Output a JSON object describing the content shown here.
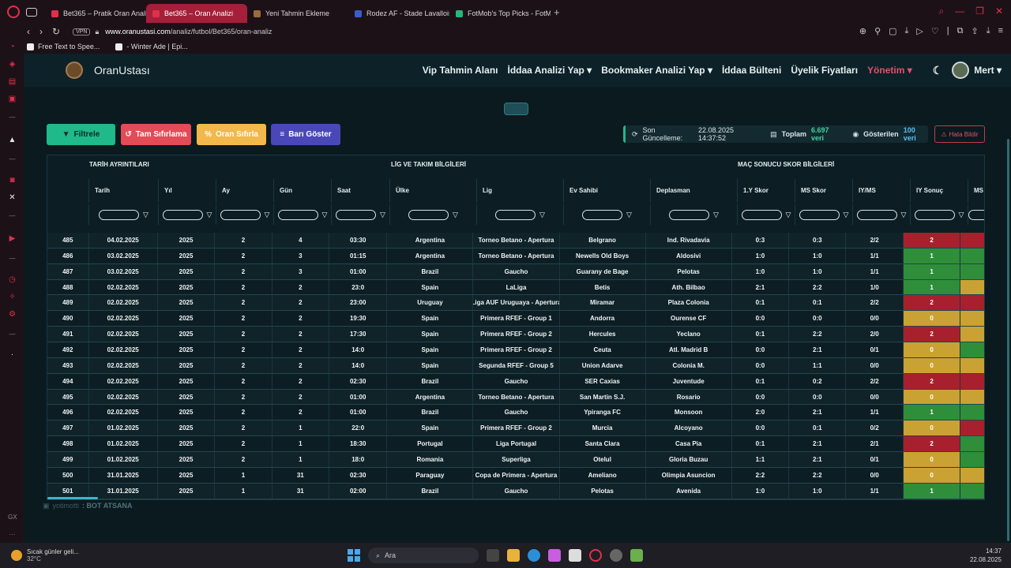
{
  "browser": {
    "tabs": [
      {
        "label": "Bet365 – Pratik Oran Analiz",
        "color": "#e0304a",
        "active": false
      },
      {
        "label": "Bet365 – Oran Analizi",
        "color": "#e0304a",
        "active": true
      },
      {
        "label": "Yeni Tahmin Ekleme",
        "color": "#9a6b3c",
        "active": false
      },
      {
        "label": "Rodez AF - Stade Lavallois",
        "color": "#3a5ec9",
        "active": false
      },
      {
        "label": "FotMob's Top Picks - FotMob",
        "color": "#27b67a",
        "active": false
      }
    ],
    "vpn": "VPN",
    "url_host": "www.oranustasi.com",
    "url_path": "/analiz/futbol/Bet365/oran-analiz",
    "bookmarks": [
      "Free Text to Spee...",
      "- Winter Ade | Epi..."
    ]
  },
  "app": {
    "brand": "OranUstası",
    "menu": [
      "Vip Tahmin Alanı",
      "İddaa Analizi Yap ▾",
      "Bookmaker Analizi Yap ▾",
      "İddaa Bülteni",
      "Üyelik Fiyatları"
    ],
    "management": "Yönetim ▾",
    "user": "Mert ▾"
  },
  "toolbar": {
    "filter": "Filtrele",
    "reset_all": "Tam Sıfırlama",
    "reset_odds": "Oran Sıfırla",
    "show_bar": "Barı Göster"
  },
  "status": {
    "last_update_label": "Son Güncelleme:",
    "last_update": "22.08.2025 14:37:52",
    "total_label": "Toplam",
    "total": "6.697 veri",
    "shown_label": "Gösterilen",
    "shown": "100 veri",
    "error_button": "Hata Bildir"
  },
  "table": {
    "groups": [
      "TARİH AYRINTILARI",
      "LİG VE TAKIM BİLGİLERİ",
      "MAÇ SONUCU SKOR BİLGİLERİ"
    ],
    "columns": [
      "",
      "Tarih",
      "Yıl",
      "Ay",
      "Gün",
      "Saat",
      "Ülke",
      "Lig",
      "Ev Sahibi",
      "Deplasman",
      "1.Y Skor",
      "MS Skor",
      "IY/MS",
      "IY Sonuç",
      "MS So"
    ],
    "rows": [
      {
        "id": "485",
        "date": "04.02.2025",
        "year": "2025",
        "month": "2",
        "day": "4",
        "time": "03:30",
        "country": "Argentina",
        "league": "Torneo Betano - Apertura",
        "home": "Belgrano",
        "away": "Ind. Rivadavia",
        "ht": "0:3",
        "ft": "0:3",
        "htft": "2/2",
        "iy": "2",
        "iy_color": "#a8202e",
        "ms_color": "#a8202e"
      },
      {
        "id": "486",
        "date": "03.02.2025",
        "year": "2025",
        "month": "2",
        "day": "3",
        "time": "01:15",
        "country": "Argentina",
        "league": "Torneo Betano - Apertura",
        "home": "Newells Old Boys",
        "away": "Aldosivi",
        "ht": "1:0",
        "ft": "1:0",
        "htft": "1/1",
        "iy": "1",
        "iy_color": "#2e8e3a",
        "ms_color": "#2e8e3a"
      },
      {
        "id": "487",
        "date": "03.02.2025",
        "year": "2025",
        "month": "2",
        "day": "3",
        "time": "01:00",
        "country": "Brazil",
        "league": "Gaucho",
        "home": "Guarany de Bage",
        "away": "Pelotas",
        "ht": "1:0",
        "ft": "1:0",
        "htft": "1/1",
        "iy": "1",
        "iy_color": "#2e8e3a",
        "ms_color": "#2e8e3a"
      },
      {
        "id": "488",
        "date": "02.02.2025",
        "year": "2025",
        "month": "2",
        "day": "2",
        "time": "23:0",
        "country": "Spain",
        "league": "LaLiga",
        "home": "Betis",
        "away": "Ath. Bilbao",
        "ht": "2:1",
        "ft": "2:2",
        "htft": "1/0",
        "iy": "1",
        "iy_color": "#2e8e3a",
        "ms_color": "#c9a233"
      },
      {
        "id": "489",
        "date": "02.02.2025",
        "year": "2025",
        "month": "2",
        "day": "2",
        "time": "23:00",
        "country": "Uruguay",
        "league": "Liga AUF Uruguaya - Apertura",
        "home": "Miramar",
        "away": "Plaza Colonia",
        "ht": "0:1",
        "ft": "0:1",
        "htft": "2/2",
        "iy": "2",
        "iy_color": "#a8202e",
        "ms_color": "#a8202e"
      },
      {
        "id": "490",
        "date": "02.02.2025",
        "year": "2025",
        "month": "2",
        "day": "2",
        "time": "19:30",
        "country": "Spain",
        "league": "Primera RFEF - Group 1",
        "home": "Andorra",
        "away": "Ourense CF",
        "ht": "0:0",
        "ft": "0:0",
        "htft": "0/0",
        "iy": "0",
        "iy_color": "#c9a233",
        "ms_color": "#c9a233"
      },
      {
        "id": "491",
        "date": "02.02.2025",
        "year": "2025",
        "month": "2",
        "day": "2",
        "time": "17:30",
        "country": "Spain",
        "league": "Primera RFEF - Group 2",
        "home": "Hercules",
        "away": "Yeclano",
        "ht": "0:1",
        "ft": "2:2",
        "htft": "2/0",
        "iy": "2",
        "iy_color": "#a8202e",
        "ms_color": "#c9a233"
      },
      {
        "id": "492",
        "date": "02.02.2025",
        "year": "2025",
        "month": "2",
        "day": "2",
        "time": "14:0",
        "country": "Spain",
        "league": "Primera RFEF - Group 2",
        "home": "Ceuta",
        "away": "Atl. Madrid B",
        "ht": "0:0",
        "ft": "2:1",
        "htft": "0/1",
        "iy": "0",
        "iy_color": "#c9a233",
        "ms_color": "#2e8e3a"
      },
      {
        "id": "493",
        "date": "02.02.2025",
        "year": "2025",
        "month": "2",
        "day": "2",
        "time": "14:0",
        "country": "Spain",
        "league": "Segunda RFEF - Group 5",
        "home": "Union Adarve",
        "away": "Colonia M.",
        "ht": "0:0",
        "ft": "1:1",
        "htft": "0/0",
        "iy": "0",
        "iy_color": "#c9a233",
        "ms_color": "#c9a233"
      },
      {
        "id": "494",
        "date": "02.02.2025",
        "year": "2025",
        "month": "2",
        "day": "2",
        "time": "02:30",
        "country": "Brazil",
        "league": "Gaucho",
        "home": "SER Caxias",
        "away": "Juventude",
        "ht": "0:1",
        "ft": "0:2",
        "htft": "2/2",
        "iy": "2",
        "iy_color": "#a8202e",
        "ms_color": "#a8202e"
      },
      {
        "id": "495",
        "date": "02.02.2025",
        "year": "2025",
        "month": "2",
        "day": "2",
        "time": "01:00",
        "country": "Argentina",
        "league": "Torneo Betano - Apertura",
        "home": "San Martin S.J.",
        "away": "Rosario",
        "ht": "0:0",
        "ft": "0:0",
        "htft": "0/0",
        "iy": "0",
        "iy_color": "#c9a233",
        "ms_color": "#c9a233"
      },
      {
        "id": "496",
        "date": "02.02.2025",
        "year": "2025",
        "month": "2",
        "day": "2",
        "time": "01:00",
        "country": "Brazil",
        "league": "Gaucho",
        "home": "Ypiranga FC",
        "away": "Monsoon",
        "ht": "2:0",
        "ft": "2:1",
        "htft": "1/1",
        "iy": "1",
        "iy_color": "#2e8e3a",
        "ms_color": "#2e8e3a"
      },
      {
        "id": "497",
        "date": "01.02.2025",
        "year": "2025",
        "month": "2",
        "day": "1",
        "time": "22:0",
        "country": "Spain",
        "league": "Primera RFEF - Group 2",
        "home": "Murcia",
        "away": "Alcoyano",
        "ht": "0:0",
        "ft": "0:1",
        "htft": "0/2",
        "iy": "0",
        "iy_color": "#c9a233",
        "ms_color": "#a8202e"
      },
      {
        "id": "498",
        "date": "01.02.2025",
        "year": "2025",
        "month": "2",
        "day": "1",
        "time": "18:30",
        "country": "Portugal",
        "league": "Liga Portugal",
        "home": "Santa Clara",
        "away": "Casa Pia",
        "ht": "0:1",
        "ft": "2:1",
        "htft": "2/1",
        "iy": "2",
        "iy_color": "#a8202e",
        "ms_color": "#2e8e3a"
      },
      {
        "id": "499",
        "date": "01.02.2025",
        "year": "2025",
        "month": "2",
        "day": "1",
        "time": "18:0",
        "country": "Romania",
        "league": "Superliga",
        "home": "Otelul",
        "away": "Gloria Buzau",
        "ht": "1:1",
        "ft": "2:1",
        "htft": "0/1",
        "iy": "0",
        "iy_color": "#c9a233",
        "ms_color": "#2e8e3a"
      },
      {
        "id": "500",
        "date": "31.01.2025",
        "year": "2025",
        "month": "1",
        "day": "31",
        "time": "02:30",
        "country": "Paraguay",
        "league": "Copa de Primera - Apertura",
        "home": "Ameliano",
        "away": "Olimpia Asuncion",
        "ht": "2:2",
        "ft": "2:2",
        "htft": "0/0",
        "iy": "0",
        "iy_color": "#c9a233",
        "ms_color": "#c9a233"
      },
      {
        "id": "501",
        "date": "31.01.2025",
        "year": "2025",
        "month": "1",
        "day": "31",
        "time": "02:00",
        "country": "Brazil",
        "league": "Gaucho",
        "home": "Pelotas",
        "away": "Avenida",
        "ht": "1:0",
        "ft": "1:0",
        "htft": "1/1",
        "iy": "1",
        "iy_color": "#2e8e3a",
        "ms_color": "#2e8e3a"
      }
    ]
  },
  "chat": {
    "user": "yotimotti",
    "message": ": BOT ATSANA"
  },
  "taskbar": {
    "weather_title": "Sıcak günler geli...",
    "weather_temp": "32°C",
    "search": "Ara",
    "time": "14:37",
    "date": "22.08.2025"
  }
}
